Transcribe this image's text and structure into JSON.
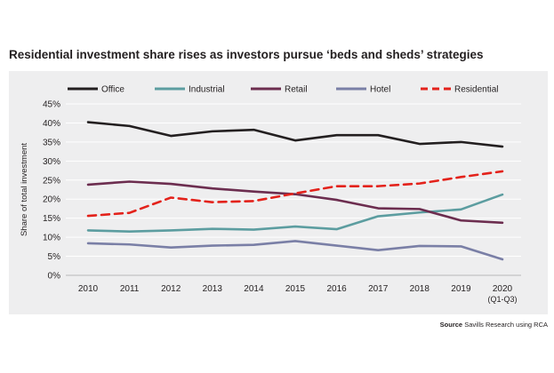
{
  "chart_data": {
    "type": "line",
    "title": "Residential investment share rises as investors pursue ‘beds and sheds’ strategies",
    "ylabel": "Share of total investment",
    "xlabel": "",
    "categories": [
      "2010",
      "2011",
      "2012",
      "2013",
      "2014",
      "2015",
      "2016",
      "2017",
      "2018",
      "2019",
      "2020"
    ],
    "category_sublabels": [
      "",
      "",
      "",
      "",
      "",
      "",
      "",
      "",
      "",
      "",
      "(Q1-Q3)"
    ],
    "ylim": [
      0,
      45
    ],
    "yticks": [
      "0%",
      "5%",
      "10%",
      "15%",
      "20%",
      "25%",
      "30%",
      "35%",
      "40%",
      "45%"
    ],
    "grid": true,
    "legend_position": "top",
    "series": [
      {
        "name": "Office",
        "color": "#231f20",
        "dashed": false,
        "values": [
          40.2,
          39.2,
          36.6,
          37.8,
          38.2,
          35.4,
          36.8,
          36.8,
          34.5,
          35.0,
          33.8
        ]
      },
      {
        "name": "Industrial",
        "color": "#5c9da0",
        "dashed": false,
        "values": [
          11.8,
          11.5,
          11.8,
          12.2,
          12.0,
          12.8,
          12.1,
          15.5,
          16.5,
          17.3,
          21.2
        ]
      },
      {
        "name": "Retail",
        "color": "#6c2d4f",
        "dashed": false,
        "values": [
          23.8,
          24.6,
          24.0,
          22.8,
          22.0,
          21.3,
          19.8,
          17.6,
          17.4,
          14.4,
          13.8
        ]
      },
      {
        "name": "Hotel",
        "color": "#7a7fa6",
        "dashed": false,
        "values": [
          8.4,
          8.1,
          7.3,
          7.8,
          8.0,
          9.0,
          7.8,
          6.6,
          7.7,
          7.6,
          4.2
        ]
      },
      {
        "name": "Residential",
        "color": "#e3221b",
        "dashed": true,
        "values": [
          15.6,
          16.4,
          20.4,
          19.2,
          19.5,
          21.5,
          23.4,
          23.4,
          24.1,
          25.8,
          27.3
        ]
      }
    ]
  },
  "source": {
    "label": "Source",
    "text": "Savills Research using RCA"
  }
}
